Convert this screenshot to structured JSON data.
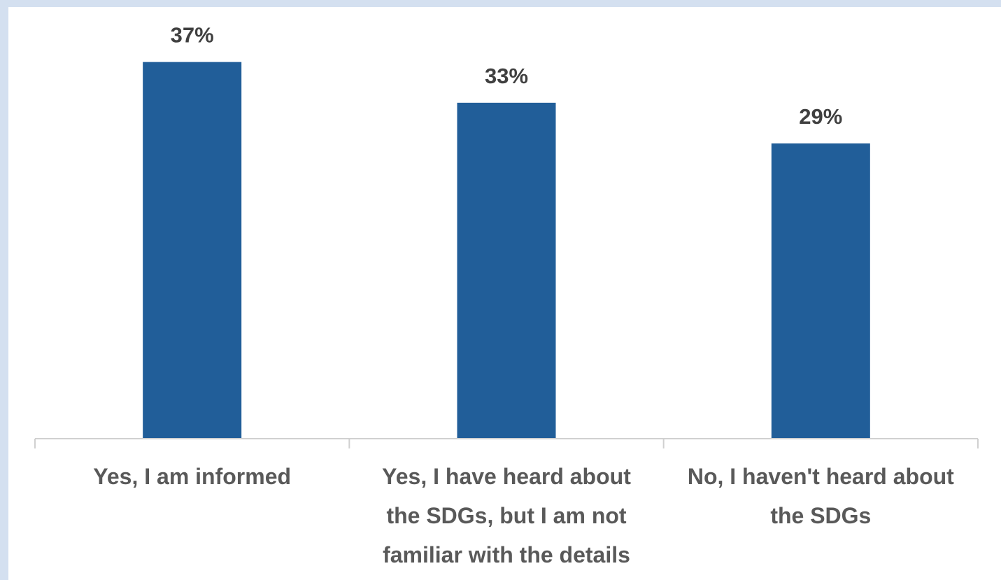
{
  "chart_data": {
    "type": "bar",
    "title": "",
    "xlabel": "",
    "ylabel": "",
    "categories": [
      [
        "Yes, I am informed"
      ],
      [
        "Yes, I have heard about",
        "the SDGs, but I am not",
        "familiar with the details"
      ],
      [
        "No, I haven't heard about",
        "the SDGs"
      ]
    ],
    "values": [
      37,
      33,
      29
    ],
    "data_labels": [
      "37%",
      "33%",
      "29%"
    ],
    "unit": "%",
    "ylim": [
      0,
      40
    ],
    "grid": false,
    "legend": "none",
    "bar_color": "#215e99",
    "axis_color": "#d0d0d0"
  }
}
